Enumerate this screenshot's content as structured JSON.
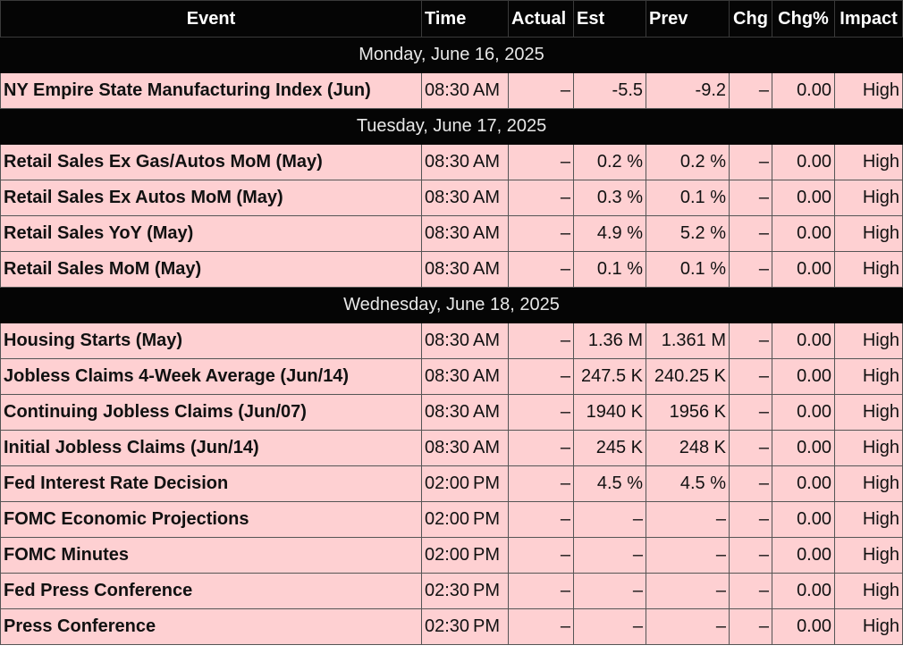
{
  "headers": {
    "event": "Event",
    "time": "Time",
    "actual": "Actual",
    "est": "Est",
    "prev": "Prev",
    "chg": "Chg",
    "chg_pct": "Chg%",
    "impact": "Impact"
  },
  "days": [
    {
      "date": "Monday, June 16, 2025",
      "events": [
        {
          "event": "NY Empire State Manufacturing Index (Jun)",
          "time": "08:30 AM",
          "actual": "–",
          "est": "-5.5",
          "prev": "-9.2",
          "chg": "–",
          "chg_pct": "0.00",
          "impact": "High"
        }
      ]
    },
    {
      "date": "Tuesday, June 17, 2025",
      "events": [
        {
          "event": "Retail Sales Ex Gas/Autos MoM (May)",
          "time": "08:30 AM",
          "actual": "–",
          "est": "0.2 %",
          "prev": "0.2 %",
          "chg": "–",
          "chg_pct": "0.00",
          "impact": "High"
        },
        {
          "event": "Retail Sales Ex Autos MoM (May)",
          "time": "08:30 AM",
          "actual": "–",
          "est": "0.3 %",
          "prev": "0.1 %",
          "chg": "–",
          "chg_pct": "0.00",
          "impact": "High"
        },
        {
          "event": "Retail Sales YoY (May)",
          "time": "08:30 AM",
          "actual": "–",
          "est": "4.9 %",
          "prev": "5.2 %",
          "chg": "–",
          "chg_pct": "0.00",
          "impact": "High"
        },
        {
          "event": "Retail Sales MoM (May)",
          "time": "08:30 AM",
          "actual": "–",
          "est": "0.1 %",
          "prev": "0.1 %",
          "chg": "–",
          "chg_pct": "0.00",
          "impact": "High"
        }
      ]
    },
    {
      "date": "Wednesday, June 18, 2025",
      "events": [
        {
          "event": "Housing Starts (May)",
          "time": "08:30 AM",
          "actual": "–",
          "est": "1.36 M",
          "prev": "1.361 M",
          "chg": "–",
          "chg_pct": "0.00",
          "impact": "High"
        },
        {
          "event": "Jobless Claims 4-Week Average (Jun/14)",
          "time": "08:30 AM",
          "actual": "–",
          "est": "247.5 K",
          "prev": "240.25 K",
          "chg": "–",
          "chg_pct": "0.00",
          "impact": "High"
        },
        {
          "event": "Continuing Jobless Claims (Jun/07)",
          "time": "08:30 AM",
          "actual": "–",
          "est": "1940 K",
          "prev": "1956 K",
          "chg": "–",
          "chg_pct": "0.00",
          "impact": "High"
        },
        {
          "event": "Initial Jobless Claims (Jun/14)",
          "time": "08:30 AM",
          "actual": "–",
          "est": "245 K",
          "prev": "248 K",
          "chg": "–",
          "chg_pct": "0.00",
          "impact": "High"
        },
        {
          "event": "Fed Interest Rate Decision",
          "time": "02:00 PM",
          "actual": "–",
          "est": "4.5 %",
          "prev": "4.5 %",
          "chg": "–",
          "chg_pct": "0.00",
          "impact": "High"
        },
        {
          "event": "FOMC Economic Projections",
          "time": "02:00 PM",
          "actual": "–",
          "est": "–",
          "prev": "–",
          "chg": "–",
          "chg_pct": "0.00",
          "impact": "High"
        },
        {
          "event": "FOMC Minutes",
          "time": "02:00 PM",
          "actual": "–",
          "est": "–",
          "prev": "–",
          "chg": "–",
          "chg_pct": "0.00",
          "impact": "High"
        },
        {
          "event": "Fed Press Conference",
          "time": "02:30 PM",
          "actual": "–",
          "est": "–",
          "prev": "–",
          "chg": "–",
          "chg_pct": "0.00",
          "impact": "High"
        },
        {
          "event": "Press Conference",
          "time": "02:30 PM",
          "actual": "–",
          "est": "–",
          "prev": "–",
          "chg": "–",
          "chg_pct": "0.00",
          "impact": "High"
        }
      ]
    }
  ]
}
